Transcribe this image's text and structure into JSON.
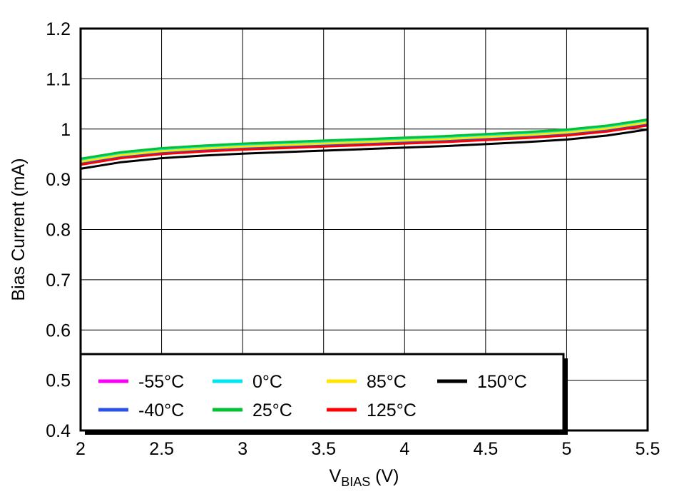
{
  "chart_data": {
    "type": "line",
    "title": "",
    "xlabel": {
      "prefix": "V",
      "subscript": "BIAS",
      "suffix": " (V)"
    },
    "ylabel": "Bias Current (mA)",
    "xlim": [
      2,
      5.5
    ],
    "ylim": [
      0.4,
      1.2
    ],
    "xtick_values": [
      2,
      2.5,
      3,
      3.5,
      4,
      4.5,
      5,
      5.5
    ],
    "xtick_labels": [
      "2",
      "2.5",
      "3",
      "3.5",
      "4",
      "4.5",
      "5",
      "5.5"
    ],
    "ytick_values": [
      0.4,
      0.5,
      0.6,
      0.7,
      0.8,
      0.9,
      1.0,
      1.1,
      1.2
    ],
    "ytick_labels": [
      "0.4",
      "0.5",
      "0.6",
      "0.7",
      "0.8",
      "0.9",
      "1",
      "1.1",
      "1.2"
    ],
    "grid": true,
    "legend_position": "bottom-left",
    "x": [
      2.0,
      2.25,
      2.5,
      2.75,
      3.0,
      3.25,
      3.5,
      3.75,
      4.0,
      4.25,
      4.5,
      4.75,
      5.0,
      5.25,
      5.5
    ],
    "series": [
      {
        "name": "-55°C",
        "color": "#F800F8",
        "values": [
          0.933,
          0.946,
          0.954,
          0.959,
          0.963,
          0.966,
          0.969,
          0.972,
          0.975,
          0.978,
          0.982,
          0.986,
          0.991,
          0.999,
          1.011
        ]
      },
      {
        "name": "-40°C",
        "color": "#2A52EB",
        "values": [
          0.932,
          0.945,
          0.953,
          0.958,
          0.962,
          0.965,
          0.968,
          0.971,
          0.974,
          0.977,
          0.981,
          0.985,
          0.99,
          0.998,
          1.01
        ]
      },
      {
        "name": "0°C",
        "color": "#00E6F0",
        "values": [
          0.937,
          0.95,
          0.958,
          0.963,
          0.967,
          0.97,
          0.973,
          0.976,
          0.979,
          0.982,
          0.986,
          0.99,
          0.995,
          1.003,
          1.015
        ]
      },
      {
        "name": "25°C",
        "color": "#00C230",
        "values": [
          0.941,
          0.954,
          0.962,
          0.967,
          0.971,
          0.974,
          0.977,
          0.98,
          0.983,
          0.986,
          0.99,
          0.994,
          0.999,
          1.007,
          1.019
        ]
      },
      {
        "name": "85°C",
        "color": "#FFE600",
        "values": [
          0.935,
          0.948,
          0.956,
          0.961,
          0.965,
          0.968,
          0.971,
          0.974,
          0.977,
          0.98,
          0.984,
          0.988,
          0.993,
          1.001,
          1.013
        ]
      },
      {
        "name": "125°C",
        "color": "#FF0000",
        "values": [
          0.929,
          0.942,
          0.95,
          0.955,
          0.959,
          0.962,
          0.965,
          0.968,
          0.971,
          0.974,
          0.978,
          0.982,
          0.987,
          0.995,
          1.007
        ]
      },
      {
        "name": "150°C",
        "color": "#000000",
        "values": [
          0.921,
          0.934,
          0.942,
          0.947,
          0.951,
          0.954,
          0.957,
          0.96,
          0.963,
          0.966,
          0.97,
          0.974,
          0.979,
          0.987,
          0.999
        ]
      }
    ],
    "legend_order": [
      0,
      2,
      4,
      6,
      1,
      3,
      5
    ],
    "legend_columns": 4,
    "colors": {
      "axis": "#000000",
      "grid": "#000000",
      "background": "#ffffff"
    }
  }
}
